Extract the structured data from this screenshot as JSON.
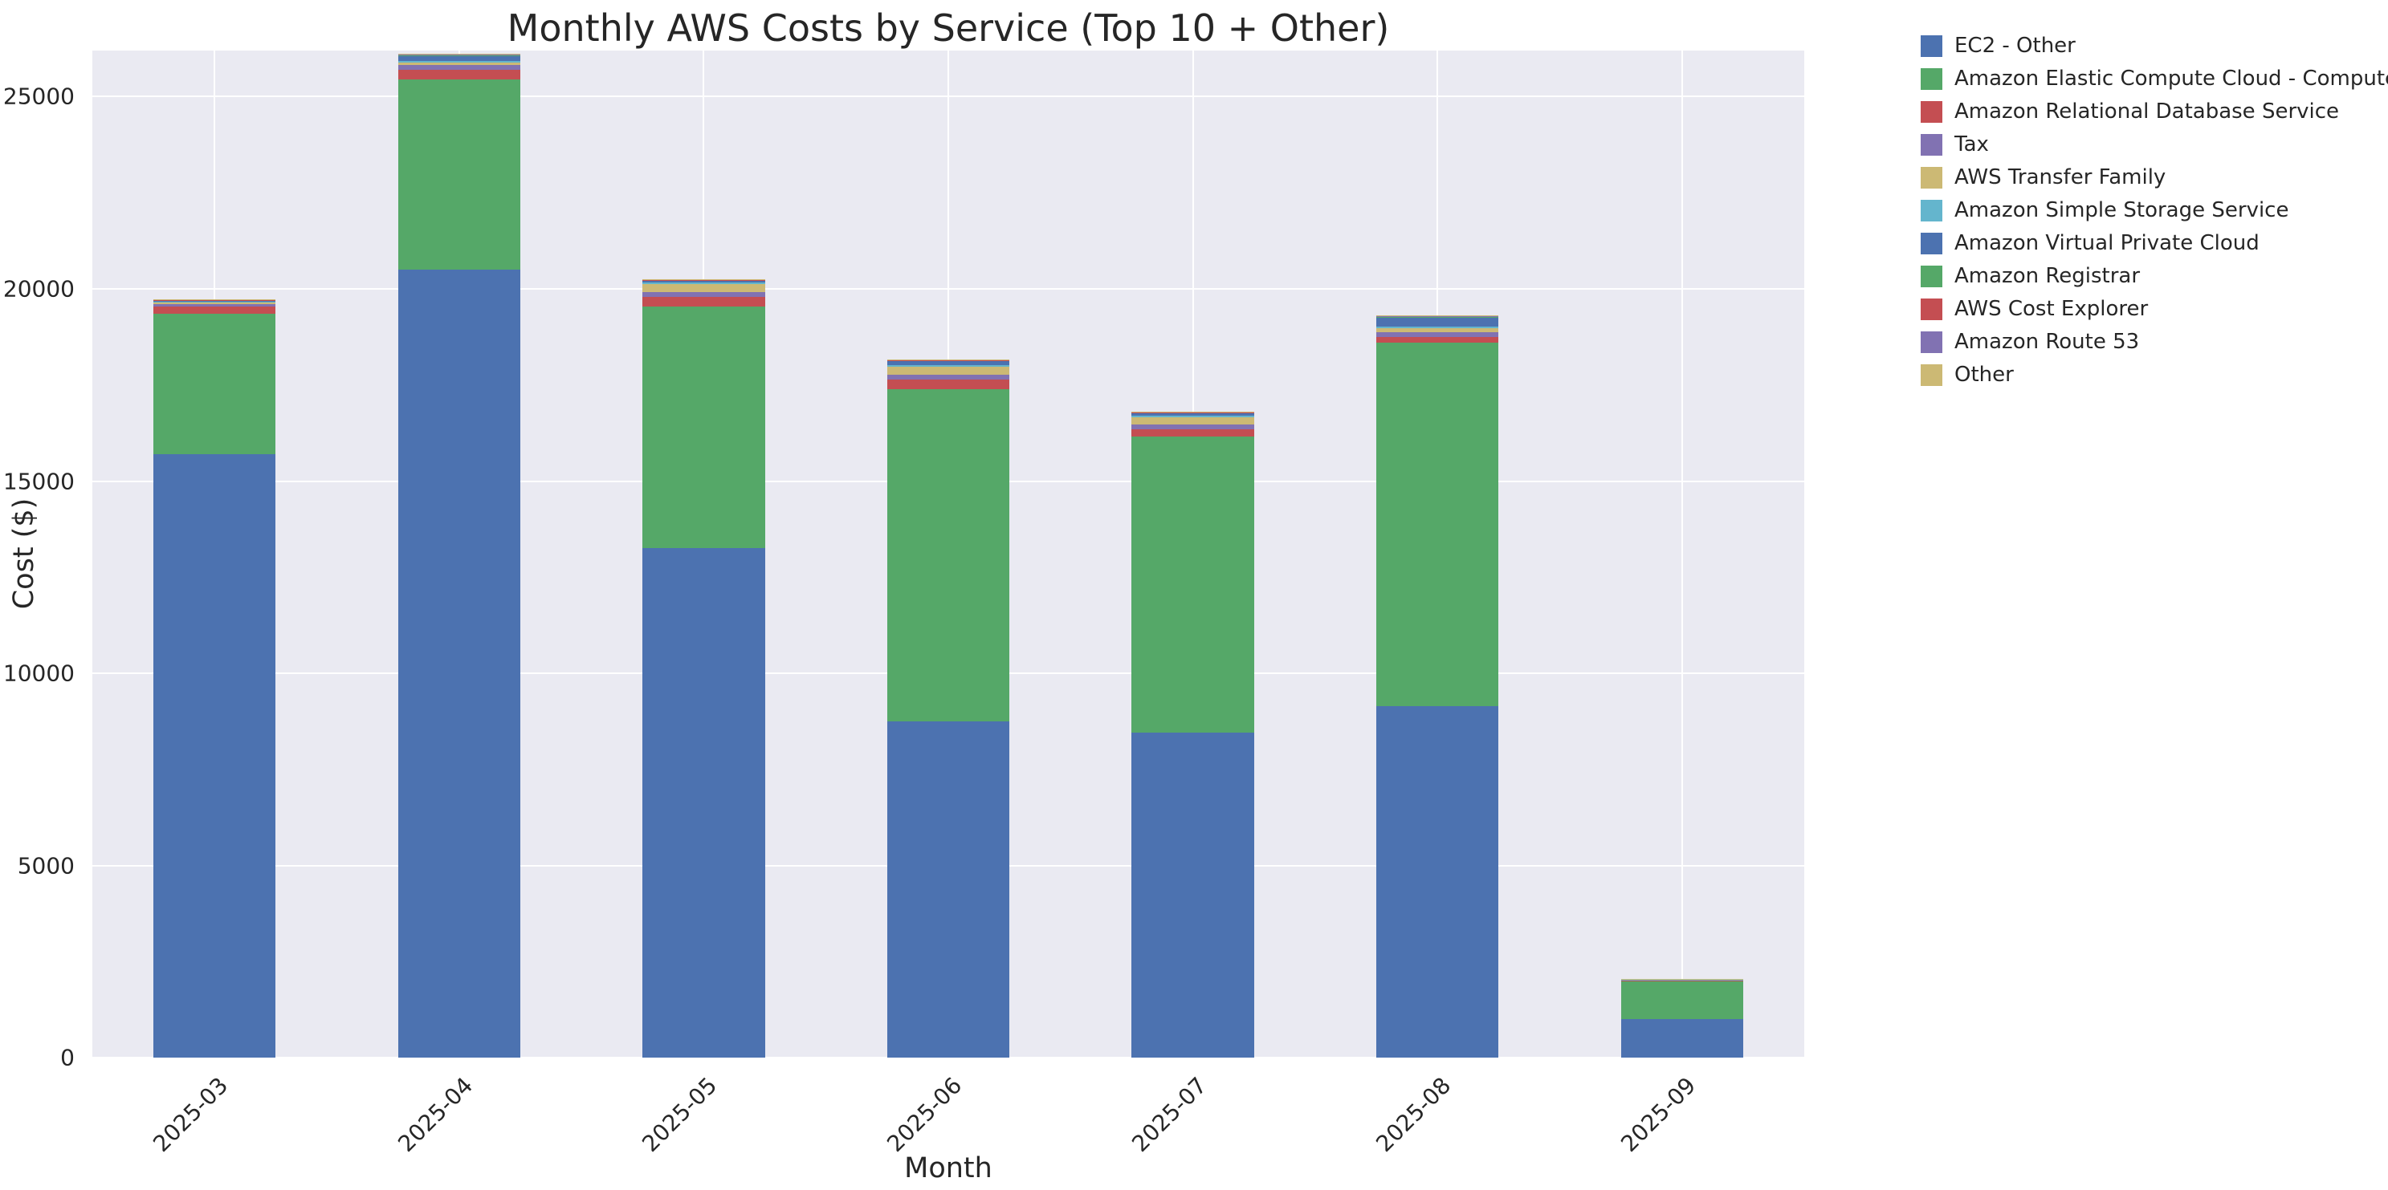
{
  "title": "Monthly AWS Costs by Service (Top 10 + Other)",
  "xlabel": "Month",
  "ylabel": "Cost ($)",
  "chart_data": {
    "type": "bar",
    "stacked": true,
    "title": "Monthly AWS Costs by Service (Top 10 + Other)",
    "xlabel": "Month",
    "ylabel": "Cost ($)",
    "categories": [
      "2025-03",
      "2025-04",
      "2025-05",
      "2025-06",
      "2025-07",
      "2025-08",
      "2025-09"
    ],
    "series": [
      {
        "name": "EC2 - Other",
        "color": "#4C72B0",
        "values": [
          15700,
          20500,
          13250,
          8750,
          8450,
          9150,
          1000
        ]
      },
      {
        "name": "Amazon Elastic Compute Cloud - Compute",
        "color": "#55A868",
        "values": [
          3650,
          4950,
          6300,
          8650,
          7700,
          9450,
          1000
        ]
      },
      {
        "name": "Amazon Relational Database Service",
        "color": "#C44E52",
        "values": [
          200,
          250,
          250,
          250,
          200,
          150,
          10
        ]
      },
      {
        "name": "Tax",
        "color": "#8172B2",
        "values": [
          60,
          120,
          120,
          120,
          120,
          120,
          10
        ]
      },
      {
        "name": "AWS Transfer Family",
        "color": "#CCB974",
        "values": [
          40,
          60,
          200,
          200,
          200,
          100,
          10
        ]
      },
      {
        "name": "Amazon Simple Storage Service",
        "color": "#64B5CD",
        "values": [
          20,
          40,
          40,
          40,
          40,
          40,
          5
        ]
      },
      {
        "name": "Amazon Virtual Private Cloud",
        "color": "#4C72B0",
        "values": [
          30,
          150,
          60,
          120,
          60,
          250,
          5
        ]
      },
      {
        "name": "Amazon Registrar",
        "color": "#55A868",
        "values": [
          10,
          10,
          10,
          10,
          10,
          10,
          2
        ]
      },
      {
        "name": "AWS Cost Explorer",
        "color": "#C44E52",
        "values": [
          5,
          10,
          10,
          10,
          10,
          10,
          2
        ]
      },
      {
        "name": "Amazon Route 53",
        "color": "#8172B2",
        "values": [
          5,
          10,
          10,
          10,
          10,
          10,
          2
        ]
      },
      {
        "name": "Other",
        "color": "#CCB974",
        "values": [
          5,
          10,
          10,
          10,
          10,
          20,
          4
        ]
      }
    ],
    "yticks": [
      0,
      5000,
      10000,
      15000,
      20000,
      25000
    ],
    "ylim": [
      0,
      26200
    ],
    "bar_width_fraction": 0.5,
    "grid": true,
    "legend_position": "right",
    "style": {
      "plot_background": "#EAEAF2",
      "grid_color": "#FFFFFF",
      "text_color": "#262626"
    }
  }
}
